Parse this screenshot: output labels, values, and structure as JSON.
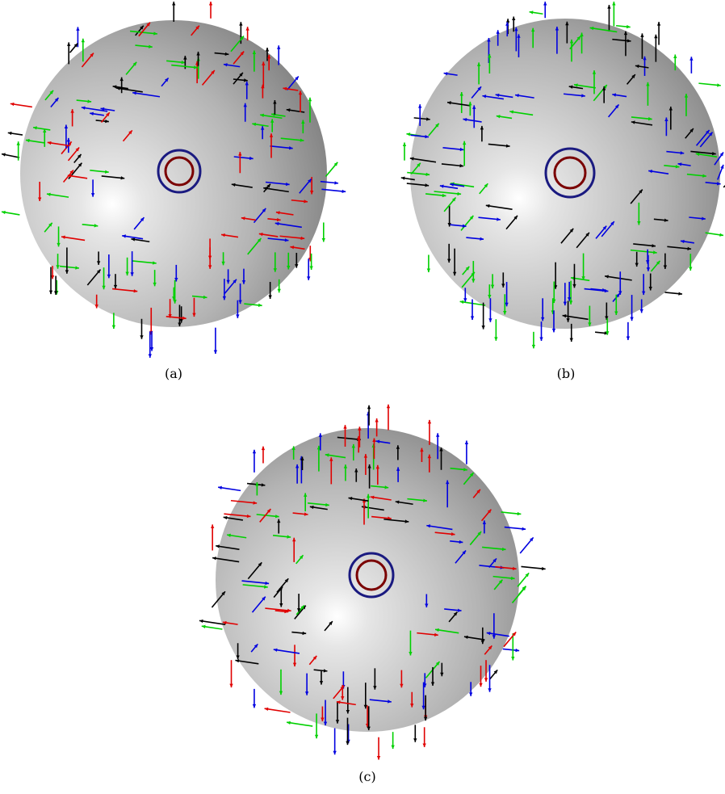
{
  "figure": {
    "panels": [
      {
        "caption": "(a)",
        "colors": [
          "red",
          "blue",
          "black",
          "green"
        ]
      },
      {
        "caption": "(b)",
        "colors": [
          "green",
          "blue",
          "black"
        ]
      },
      {
        "caption": "(c)",
        "colors": [
          "red",
          "blue",
          "green",
          "black"
        ]
      }
    ],
    "palette": {
      "red": "#e00000",
      "blue": "#0000e0",
      "black": "#000000",
      "green": "#00d000",
      "ring_outer": "#1a1a80",
      "ring_inner": "#7a0000"
    }
  }
}
